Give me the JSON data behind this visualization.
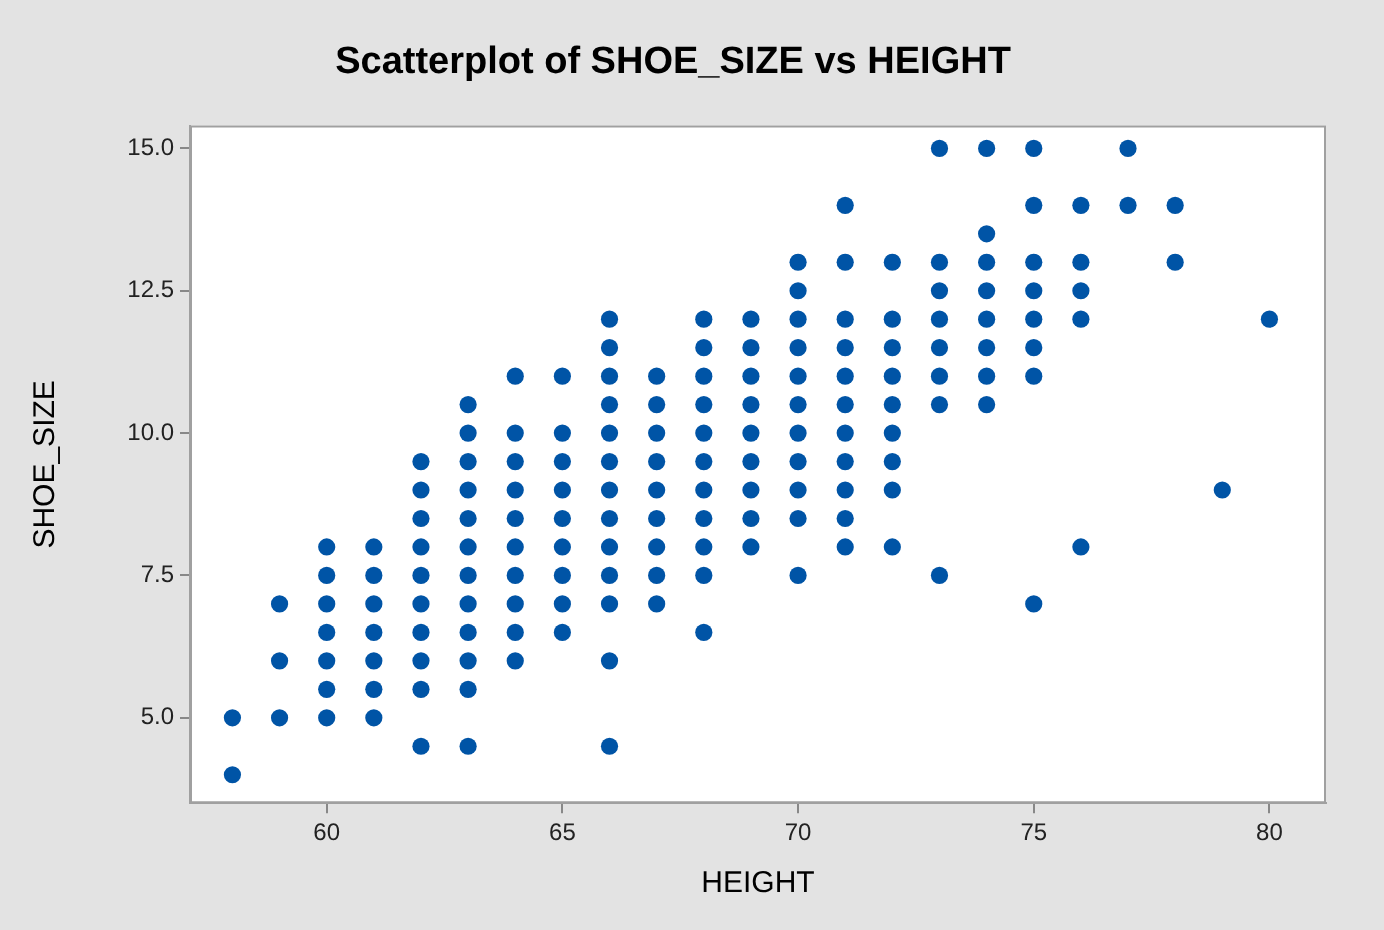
{
  "chart_data": {
    "type": "scatter",
    "title": "Scatterplot of SHOE_SIZE vs HEIGHT",
    "xlabel": "HEIGHT",
    "ylabel": "SHOE_SIZE",
    "xlim": [
      57.1,
      81.2
    ],
    "ylim": [
      3.5,
      15.4
    ],
    "xticks": [
      60,
      65,
      70,
      75,
      80
    ],
    "yticks": [
      {
        "value": 5,
        "label": "5.0"
      },
      {
        "value": 7.5,
        "label": "7.5"
      },
      {
        "value": 10,
        "label": "10.0"
      },
      {
        "value": 12.5,
        "label": "12.5"
      },
      {
        "value": 15,
        "label": "15.0"
      }
    ],
    "grid": false,
    "legend": false,
    "marker": "circle",
    "series": [
      {
        "color": "#0054a6",
        "x": [
          58,
          58,
          59,
          59,
          59,
          60,
          60,
          60,
          60,
          60,
          60,
          60,
          61,
          61,
          61,
          61,
          61,
          61,
          61,
          62,
          62,
          62,
          62,
          62,
          62,
          62,
          62,
          62,
          62,
          63,
          63,
          63,
          63,
          63,
          63,
          63,
          63,
          63,
          63,
          63,
          63,
          64,
          64,
          64,
          64,
          64,
          64,
          64,
          64,
          64,
          64,
          65,
          65,
          65,
          65,
          65,
          65,
          65,
          65,
          65,
          66,
          66,
          66,
          66,
          66,
          66,
          66,
          66,
          66,
          66,
          66,
          66,
          66,
          67,
          67,
          67,
          67,
          67,
          67,
          67,
          67,
          67,
          68,
          68,
          68,
          68,
          68,
          68,
          68,
          68,
          68,
          68,
          68,
          69,
          69,
          69,
          69,
          69,
          69,
          69,
          69,
          69,
          70,
          70,
          70,
          70,
          70,
          70,
          70,
          70,
          70,
          70,
          70,
          71,
          71,
          71,
          71,
          71,
          71,
          71,
          71,
          71,
          71,
          71,
          72,
          72,
          72,
          72,
          72,
          72,
          72,
          72,
          72,
          73,
          73,
          73,
          73,
          73,
          73,
          73,
          73,
          74,
          74,
          74,
          74,
          74,
          74,
          74,
          74,
          75,
          75,
          75,
          75,
          75,
          75,
          75,
          75,
          76,
          76,
          76,
          76,
          76,
          77,
          77,
          78,
          78,
          79,
          80
        ],
        "values": [
          5,
          4,
          7,
          6,
          5,
          8,
          7.5,
          7,
          6.5,
          6,
          5.5,
          5,
          8,
          7.5,
          7,
          6.5,
          6,
          5.5,
          5,
          9.5,
          9,
          8.5,
          8,
          7.5,
          7,
          6.5,
          6,
          5.5,
          4.5,
          10.5,
          10,
          9.5,
          9,
          8.5,
          8,
          7.5,
          7,
          6.5,
          6,
          5.5,
          4.5,
          11,
          10,
          9.5,
          9,
          8.5,
          8,
          7.5,
          7,
          6.5,
          6,
          11,
          10,
          9.5,
          9,
          8.5,
          8,
          7.5,
          7,
          6.5,
          12,
          11.5,
          11,
          10.5,
          10,
          9.5,
          9,
          8.5,
          8,
          7.5,
          7,
          6,
          4.5,
          11,
          10.5,
          10,
          9.5,
          9,
          8.5,
          8,
          7.5,
          7,
          12,
          11.5,
          11,
          10.5,
          10,
          9.5,
          9,
          8.5,
          8,
          7.5,
          6.5,
          12,
          11.5,
          11,
          10.5,
          10,
          9.5,
          9,
          8.5,
          8,
          13,
          12.5,
          12,
          11.5,
          11,
          10.5,
          10,
          9.5,
          9,
          8.5,
          7.5,
          14,
          13,
          12,
          11.5,
          11,
          10.5,
          10,
          9.5,
          9,
          8.5,
          8,
          13,
          12,
          11.5,
          11,
          10.5,
          10,
          9.5,
          9,
          8,
          15,
          13,
          12.5,
          12,
          11.5,
          11,
          10.5,
          7.5,
          15,
          13.5,
          13,
          12.5,
          12,
          11.5,
          11,
          10.5,
          15,
          14,
          13,
          12.5,
          12,
          11.5,
          11,
          7,
          14,
          13,
          12.5,
          12,
          8,
          15,
          14,
          14,
          13,
          9,
          12
        ]
      }
    ]
  }
}
